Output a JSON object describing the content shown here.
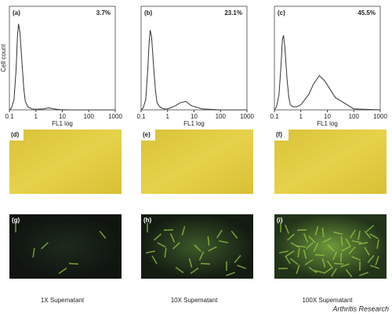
{
  "chart_data": [
    {
      "type": "line",
      "panel": "(a)",
      "annotation": "3.7%",
      "ylabel": "Cell count",
      "xlabel": "FL1 log",
      "xscale": "log",
      "color": "#333333",
      "xlim": [
        0.1,
        1000
      ],
      "xticks": [
        0.1,
        1,
        10,
        100,
        1000
      ],
      "ylim": [
        0,
        100
      ],
      "x": [
        0.1,
        0.12,
        0.15,
        0.18,
        0.2,
        0.22,
        0.25,
        0.3,
        0.35,
        0.4,
        0.5,
        0.7,
        1,
        2,
        3,
        5,
        8,
        20,
        100,
        1000
      ],
      "values": [
        0,
        2,
        10,
        40,
        70,
        83,
        75,
        45,
        20,
        8,
        3,
        1,
        0.5,
        1,
        2,
        1,
        0.3,
        0,
        0,
        0
      ]
    },
    {
      "type": "line",
      "panel": "(b)",
      "annotation": "23.1%",
      "xlabel": "FL1 log",
      "xscale": "log",
      "color": "#333333",
      "xlim": [
        0.1,
        1000
      ],
      "xticks": [
        0.1,
        1,
        10,
        100,
        1000
      ],
      "ylim": [
        0,
        100
      ],
      "x": [
        0.1,
        0.12,
        0.15,
        0.18,
        0.2,
        0.22,
        0.25,
        0.3,
        0.35,
        0.4,
        0.5,
        0.7,
        1,
        2,
        3,
        5,
        8,
        20,
        100,
        1000
      ],
      "values": [
        0,
        2,
        10,
        40,
        65,
        77,
        70,
        40,
        18,
        7,
        3,
        1,
        1,
        4,
        7,
        8,
        4,
        1,
        0,
        0
      ]
    },
    {
      "type": "line",
      "panel": "(c)",
      "annotation": "45.5%",
      "xlabel": "FL1 log",
      "xscale": "log",
      "color": "#333333",
      "xlim": [
        0.1,
        1000
      ],
      "xticks": [
        0.1,
        1,
        10,
        100,
        1000
      ],
      "ylim": [
        0,
        100
      ],
      "x": [
        0.1,
        0.12,
        0.15,
        0.18,
        0.2,
        0.22,
        0.25,
        0.3,
        0.35,
        0.4,
        0.5,
        0.7,
        1,
        2,
        3,
        5,
        8,
        20,
        100,
        1000
      ],
      "values": [
        0,
        3,
        15,
        45,
        68,
        72,
        60,
        30,
        12,
        5,
        3,
        3,
        5,
        15,
        25,
        33,
        28,
        12,
        1,
        0
      ]
    }
  ],
  "bright_field": [
    "(d)",
    "(e)",
    "(f)"
  ],
  "fluorescence": [
    "(g)",
    "(h)",
    "(i)"
  ],
  "captions": [
    "1X Supematant",
    "10X Supematant",
    "100X Supematant"
  ],
  "credit": "Arthritis Research"
}
